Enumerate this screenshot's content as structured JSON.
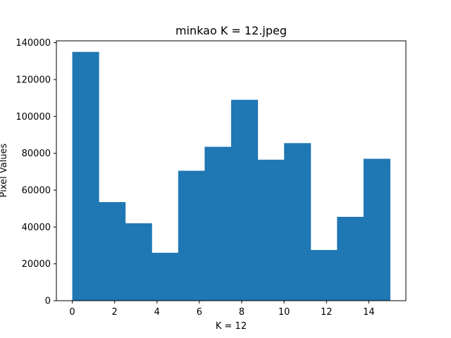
{
  "chart_data": {
    "type": "bar",
    "title": "minkao K = 12.jpeg",
    "xlabel": "K = 12",
    "ylabel": "Pixel Values",
    "bin_edges": [
      0,
      1.25,
      2.5,
      3.75,
      5,
      6.25,
      7.5,
      8.75,
      10,
      11.25,
      12.5,
      13.75,
      15
    ],
    "values": [
      135000,
      53500,
      42000,
      26000,
      70500,
      83500,
      109000,
      76500,
      85500,
      27500,
      45500,
      77000
    ],
    "xlim": [
      -0.75,
      15.75
    ],
    "ylim": [
      0,
      141000
    ],
    "x_ticks": [
      0,
      2,
      4,
      6,
      8,
      10,
      12,
      14
    ],
    "x_tick_labels": [
      "0",
      "2",
      "4",
      "6",
      "8",
      "10",
      "12",
      "14"
    ],
    "y_ticks": [
      0,
      20000,
      40000,
      60000,
      80000,
      100000,
      120000,
      140000
    ],
    "y_tick_labels": [
      "0",
      "20000",
      "40000",
      "60000",
      "80000",
      "100000",
      "120000",
      "140000"
    ],
    "bar_color": "#1f77b4",
    "grid": false,
    "legend": "none"
  }
}
